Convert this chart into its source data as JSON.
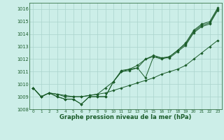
{
  "title": "Graphe pression niveau de la mer (hPa)",
  "bg_color": "#cceee8",
  "grid_color": "#aad4cc",
  "line_color": "#1a5c2a",
  "xlim": [
    -0.5,
    23.5
  ],
  "ylim": [
    1008.0,
    1016.5
  ],
  "yticks": [
    1008,
    1009,
    1010,
    1011,
    1012,
    1013,
    1014,
    1015,
    1016
  ],
  "xticks": [
    0,
    1,
    2,
    3,
    4,
    5,
    6,
    7,
    8,
    9,
    10,
    11,
    12,
    13,
    14,
    15,
    16,
    17,
    18,
    19,
    20,
    21,
    22,
    23
  ],
  "series": [
    [
      1009.7,
      1009.0,
      1009.3,
      1009.0,
      1008.8,
      1008.8,
      1008.4,
      1009.0,
      1009.0,
      1009.0,
      1010.2,
      1011.1,
      1011.2,
      1011.3,
      1012.0,
      1012.3,
      1012.1,
      1012.2,
      1012.7,
      1013.3,
      1014.3,
      1014.8,
      1015.0,
      1016.1
    ],
    [
      1009.7,
      1009.0,
      1009.3,
      1009.0,
      1008.8,
      1008.8,
      1008.4,
      1009.0,
      1009.0,
      1009.0,
      1010.2,
      1011.0,
      1011.1,
      1011.3,
      1010.5,
      1012.2,
      1012.0,
      1012.2,
      1012.7,
      1013.2,
      1014.2,
      1014.7,
      1014.9,
      1016.0
    ],
    [
      1009.7,
      1009.0,
      1009.3,
      1009.2,
      1009.0,
      1009.0,
      1009.0,
      1009.1,
      1009.2,
      1009.7,
      1010.2,
      1011.0,
      1011.2,
      1011.5,
      1012.0,
      1012.2,
      1012.1,
      1012.1,
      1012.6,
      1013.1,
      1014.1,
      1014.6,
      1014.8,
      1015.9
    ],
    [
      1009.7,
      1009.0,
      1009.3,
      1009.2,
      1009.1,
      1009.0,
      1009.0,
      1009.1,
      1009.2,
      1009.3,
      1009.5,
      1009.7,
      1009.9,
      1010.1,
      1010.3,
      1010.5,
      1010.8,
      1011.0,
      1011.2,
      1011.5,
      1012.0,
      1012.5,
      1013.0,
      1013.5
    ]
  ]
}
